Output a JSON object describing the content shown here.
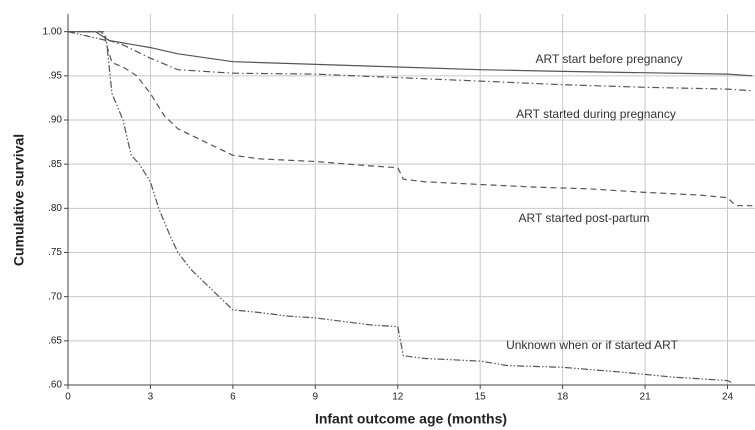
{
  "chart_data": {
    "type": "line",
    "x_label": "Infant outcome age (months)",
    "y_label": "Cumulative survival",
    "xlim": [
      0,
      25
    ],
    "xticks": [
      0,
      3,
      6,
      9,
      12,
      15,
      18,
      21,
      24
    ],
    "ylim": [
      0.6,
      1.02
    ],
    "yticks": [
      {
        "value": 0.6,
        "label": ".60"
      },
      {
        "value": 0.65,
        "label": ".65"
      },
      {
        "value": 0.7,
        "label": ".70"
      },
      {
        "value": 0.75,
        "label": ".75"
      },
      {
        "value": 0.8,
        "label": ".80"
      },
      {
        "value": 0.85,
        "label": ".85"
      },
      {
        "value": 0.9,
        "label": ".90"
      },
      {
        "value": 0.95,
        "label": ".95"
      },
      {
        "value": 1.0,
        "label": "1.00"
      }
    ],
    "grid": true,
    "series": [
      {
        "name": "ART start before pregnancy",
        "color": "#555555",
        "dash": "solid",
        "x": [
          0,
          1,
          1.5,
          3,
          4,
          6,
          12,
          15,
          18,
          24,
          24.9
        ],
        "values": [
          1.0,
          1.0,
          0.99,
          0.982,
          0.975,
          0.966,
          0.96,
          0.957,
          0.955,
          0.952,
          0.95
        ]
      },
      {
        "name": "ART started during pregnancy",
        "color": "#555555",
        "dash": "dash-dot",
        "x": [
          0,
          1.2,
          1.5,
          2,
          3,
          4,
          6,
          9,
          12,
          15,
          18,
          21,
          24,
          24.9
        ],
        "values": [
          1.0,
          1.0,
          0.99,
          0.985,
          0.97,
          0.957,
          0.953,
          0.952,
          0.948,
          0.944,
          0.94,
          0.937,
          0.935,
          0.933
        ]
      },
      {
        "name": "ART started post-partum",
        "color": "#555555",
        "dash": "dashed",
        "x": [
          0,
          1.3,
          1.4,
          1.6,
          2,
          2.5,
          3,
          3.5,
          4,
          5,
          6,
          7,
          9,
          11,
          12,
          12.2,
          13,
          15,
          17,
          19,
          21,
          23,
          24,
          24.3,
          24.9
        ],
        "values": [
          1.0,
          1.0,
          0.985,
          0.965,
          0.96,
          0.95,
          0.93,
          0.905,
          0.89,
          0.875,
          0.86,
          0.856,
          0.853,
          0.848,
          0.846,
          0.833,
          0.83,
          0.827,
          0.824,
          0.822,
          0.818,
          0.815,
          0.812,
          0.803,
          0.803
        ]
      },
      {
        "name": "Unknown when or if started ART",
        "color": "#555555",
        "dash": "dash-dot-dot",
        "x": [
          0,
          1.4,
          1.5,
          1.6,
          2,
          2.3,
          2.6,
          3,
          3.3,
          3.7,
          4,
          4.5,
          5,
          5.5,
          6,
          7,
          8,
          9,
          10,
          11,
          12,
          12.2,
          13,
          15,
          16,
          18,
          20,
          21,
          22,
          23,
          24,
          24.2
        ],
        "values": [
          1.0,
          0.99,
          0.96,
          0.93,
          0.9,
          0.86,
          0.85,
          0.83,
          0.8,
          0.77,
          0.75,
          0.73,
          0.715,
          0.7,
          0.685,
          0.682,
          0.678,
          0.676,
          0.672,
          0.668,
          0.666,
          0.633,
          0.63,
          0.627,
          0.622,
          0.62,
          0.615,
          0.612,
          0.609,
          0.607,
          0.605,
          0.602
        ]
      }
    ]
  }
}
